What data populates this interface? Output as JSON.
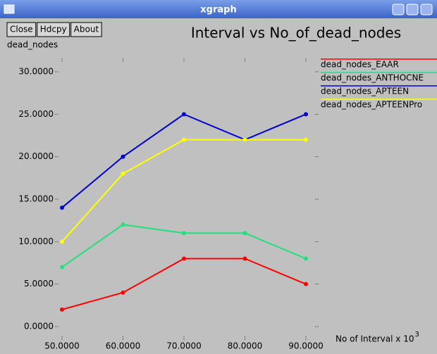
{
  "window": {
    "title": "xgraph",
    "buttons": [
      "Close",
      "Hdcpy",
      "About"
    ]
  },
  "chart_data": {
    "type": "line",
    "title": "Interval vs No_of_dead_nodes",
    "y_label": "dead_nodes",
    "x_label": "No  of  Interval x 10",
    "x_label_exponent": "3",
    "x": [
      50,
      60,
      70,
      80,
      90
    ],
    "xlim": [
      50,
      90
    ],
    "xticks": [
      {
        "value": 50,
        "label": "50.0000"
      },
      {
        "value": 60,
        "label": "60.0000"
      },
      {
        "value": 70,
        "label": "70.0000"
      },
      {
        "value": 80,
        "label": "80.0000"
      },
      {
        "value": 90,
        "label": "90.0000"
      }
    ],
    "ylim": [
      0,
      30
    ],
    "yticks": [
      {
        "value": 0,
        "label": "0.0000"
      },
      {
        "value": 5,
        "label": "5.0000"
      },
      {
        "value": 10,
        "label": "10.0000"
      },
      {
        "value": 15,
        "label": "15.0000"
      },
      {
        "value": 20,
        "label": "20.0000"
      },
      {
        "value": 25,
        "label": "25.0000"
      },
      {
        "value": 30,
        "label": "30.0000"
      }
    ],
    "series": [
      {
        "name": "dead_nodes_EAAR",
        "color": "#ff0000",
        "values": [
          2,
          4,
          8,
          8,
          5
        ]
      },
      {
        "name": "dead_nodes_ANTHOCNE",
        "color": "#22e07a",
        "values": [
          7,
          12,
          11,
          11,
          8
        ]
      },
      {
        "name": "dead_nodes_APTEEN",
        "color": "#0000d0",
        "values": [
          14,
          20,
          25,
          22,
          25
        ]
      },
      {
        "name": "dead_nodes_APTEENPro",
        "color": "#ffff00",
        "values": [
          10,
          18,
          22,
          22,
          22
        ]
      }
    ],
    "legend": "right"
  }
}
